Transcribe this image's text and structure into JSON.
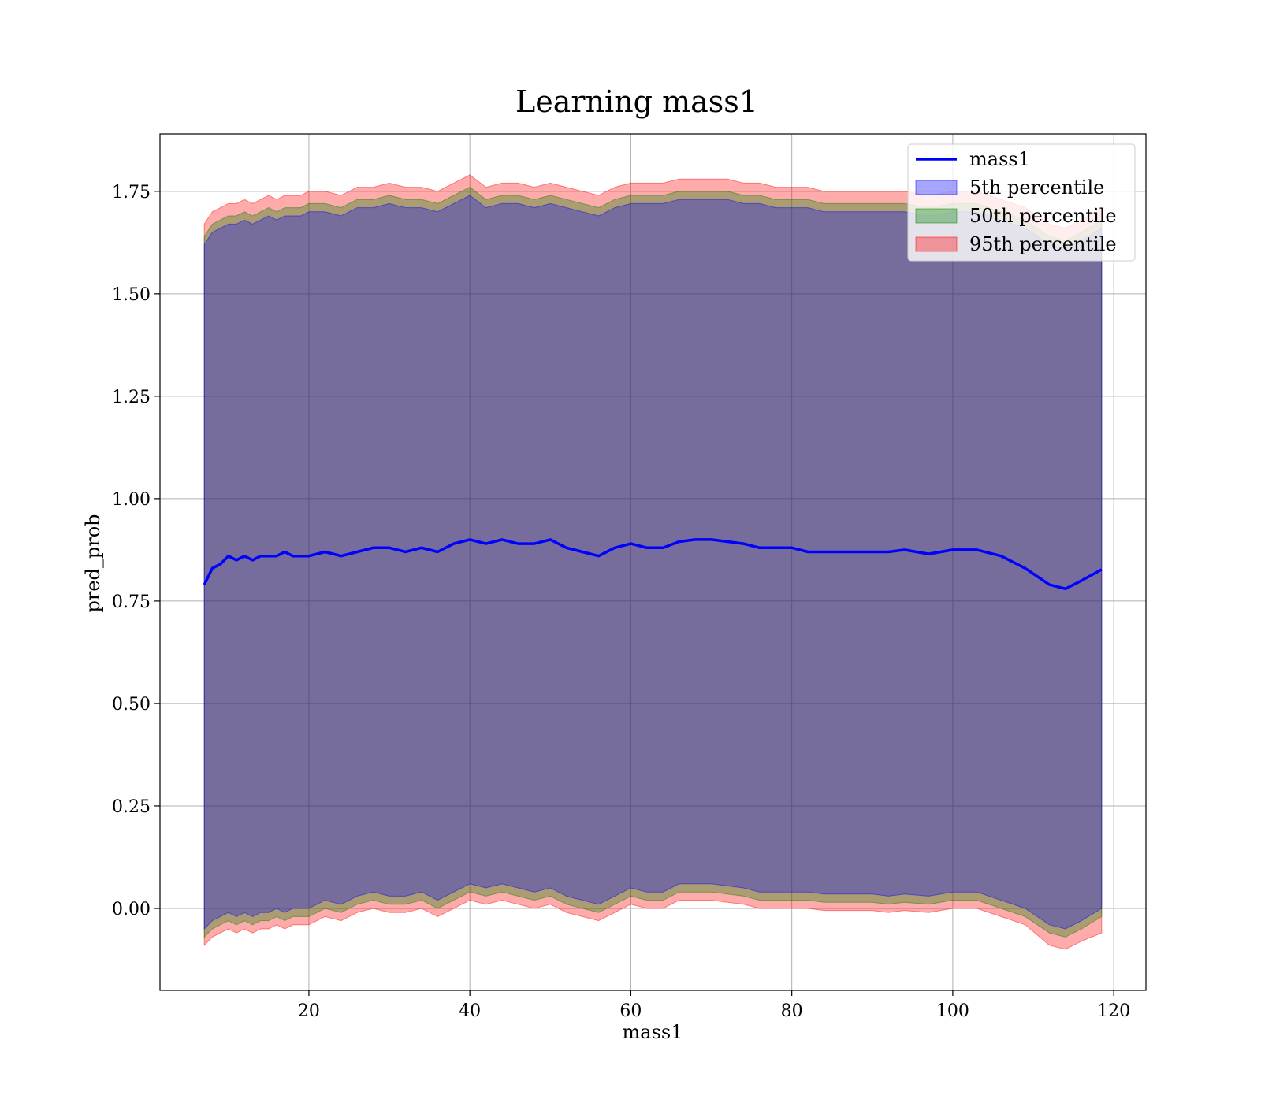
{
  "chart_data": {
    "type": "area",
    "title": "Learning mass1",
    "xlabel": "mass1",
    "ylabel": "pred_prob",
    "xlim": [
      1.5,
      124
    ],
    "ylim": [
      -0.2,
      1.89
    ],
    "xticks": [
      20,
      40,
      60,
      80,
      100,
      120
    ],
    "yticks": [
      0.0,
      0.25,
      0.5,
      0.75,
      1.0,
      1.25,
      1.5,
      1.75
    ],
    "ytick_labels": [
      "0.00",
      "0.25",
      "0.50",
      "0.75",
      "1.00",
      "1.25",
      "1.50",
      "1.75"
    ],
    "grid": true,
    "legend_position": "top-right",
    "colors": {
      "line": "#0000ff",
      "band_5": "#0000ff",
      "band_50": "#008000",
      "band_95": "#ff0000"
    },
    "legend": [
      {
        "label": "mass1",
        "kind": "line",
        "color": "#0000ff"
      },
      {
        "label": "5th percentile",
        "kind": "patch",
        "color": "#0000ff"
      },
      {
        "label": "50th percentile",
        "kind": "patch",
        "color": "#008000"
      },
      {
        "label": "95th percentile",
        "kind": "patch",
        "color": "#ff0000"
      }
    ],
    "x": [
      7,
      8,
      9,
      10,
      11,
      12,
      13,
      14,
      15,
      16,
      17,
      18,
      19,
      20,
      22,
      24,
      26,
      28,
      30,
      32,
      34,
      36,
      38,
      40,
      42,
      44,
      46,
      48,
      50,
      52,
      54,
      56,
      58,
      60,
      62,
      64,
      66,
      68,
      70,
      72,
      74,
      76,
      78,
      80,
      82,
      84,
      86,
      88,
      90,
      92,
      94,
      97,
      100,
      103,
      106,
      109,
      112,
      114,
      116,
      118.5
    ],
    "series": [
      {
        "name": "mass1",
        "values": [
          0.79,
          0.83,
          0.84,
          0.86,
          0.85,
          0.86,
          0.85,
          0.86,
          0.86,
          0.86,
          0.87,
          0.86,
          0.86,
          0.86,
          0.87,
          0.86,
          0.87,
          0.88,
          0.88,
          0.87,
          0.88,
          0.87,
          0.89,
          0.9,
          0.89,
          0.9,
          0.89,
          0.89,
          0.9,
          0.88,
          0.87,
          0.86,
          0.88,
          0.89,
          0.88,
          0.88,
          0.895,
          0.9,
          0.9,
          0.895,
          0.89,
          0.88,
          0.88,
          0.88,
          0.87,
          0.87,
          0.87,
          0.87,
          0.87,
          0.87,
          0.875,
          0.865,
          0.875,
          0.875,
          0.86,
          0.83,
          0.79,
          0.78,
          0.8,
          0.827
        ]
      },
      {
        "name": "5th percentile",
        "lower": [
          -0.05,
          -0.03,
          -0.02,
          -0.01,
          -0.02,
          -0.01,
          -0.02,
          -0.01,
          -0.01,
          0.0,
          -0.01,
          0.0,
          0.0,
          0.0,
          0.02,
          0.01,
          0.03,
          0.04,
          0.03,
          0.03,
          0.04,
          0.02,
          0.04,
          0.06,
          0.05,
          0.06,
          0.05,
          0.04,
          0.05,
          0.03,
          0.02,
          0.01,
          0.03,
          0.05,
          0.04,
          0.04,
          0.06,
          0.06,
          0.06,
          0.055,
          0.05,
          0.04,
          0.04,
          0.04,
          0.04,
          0.035,
          0.035,
          0.035,
          0.035,
          0.03,
          0.035,
          0.03,
          0.04,
          0.04,
          0.02,
          0.0,
          -0.04,
          -0.05,
          -0.03,
          0.0
        ],
        "upper": [
          1.62,
          1.65,
          1.66,
          1.67,
          1.67,
          1.68,
          1.67,
          1.68,
          1.69,
          1.68,
          1.69,
          1.69,
          1.69,
          1.7,
          1.7,
          1.69,
          1.71,
          1.71,
          1.72,
          1.71,
          1.71,
          1.7,
          1.72,
          1.74,
          1.71,
          1.72,
          1.72,
          1.71,
          1.72,
          1.71,
          1.7,
          1.69,
          1.71,
          1.72,
          1.72,
          1.72,
          1.73,
          1.73,
          1.73,
          1.73,
          1.72,
          1.72,
          1.71,
          1.71,
          1.71,
          1.7,
          1.7,
          1.7,
          1.7,
          1.7,
          1.7,
          1.69,
          1.7,
          1.7,
          1.68,
          1.66,
          1.62,
          1.61,
          1.63,
          1.66
        ]
      },
      {
        "name": "50th percentile",
        "lower": [
          -0.07,
          -0.05,
          -0.04,
          -0.03,
          -0.04,
          -0.03,
          -0.04,
          -0.03,
          -0.03,
          -0.02,
          -0.03,
          -0.02,
          -0.02,
          -0.02,
          0.0,
          -0.01,
          0.01,
          0.02,
          0.01,
          0.01,
          0.02,
          0.0,
          0.02,
          0.04,
          0.03,
          0.04,
          0.03,
          0.02,
          0.03,
          0.01,
          0.0,
          -0.01,
          0.01,
          0.03,
          0.02,
          0.02,
          0.04,
          0.04,
          0.04,
          0.035,
          0.03,
          0.02,
          0.02,
          0.02,
          0.02,
          0.015,
          0.015,
          0.015,
          0.015,
          0.01,
          0.015,
          0.01,
          0.02,
          0.02,
          0.0,
          -0.02,
          -0.06,
          -0.07,
          -0.05,
          -0.02
        ],
        "upper": [
          1.64,
          1.67,
          1.68,
          1.69,
          1.69,
          1.7,
          1.69,
          1.7,
          1.71,
          1.7,
          1.71,
          1.71,
          1.71,
          1.72,
          1.72,
          1.71,
          1.73,
          1.73,
          1.74,
          1.73,
          1.73,
          1.72,
          1.74,
          1.76,
          1.73,
          1.74,
          1.74,
          1.73,
          1.74,
          1.73,
          1.72,
          1.71,
          1.73,
          1.74,
          1.74,
          1.74,
          1.75,
          1.75,
          1.75,
          1.75,
          1.74,
          1.74,
          1.73,
          1.73,
          1.73,
          1.72,
          1.72,
          1.72,
          1.72,
          1.72,
          1.72,
          1.71,
          1.72,
          1.72,
          1.7,
          1.68,
          1.64,
          1.63,
          1.65,
          1.68
        ]
      },
      {
        "name": "95th percentile",
        "lower": [
          -0.09,
          -0.07,
          -0.06,
          -0.05,
          -0.06,
          -0.05,
          -0.06,
          -0.05,
          -0.05,
          -0.04,
          -0.05,
          -0.04,
          -0.04,
          -0.04,
          -0.02,
          -0.03,
          -0.01,
          0.0,
          -0.01,
          -0.01,
          0.0,
          -0.02,
          0.0,
          0.02,
          0.01,
          0.02,
          0.01,
          0.0,
          0.01,
          -0.01,
          -0.02,
          -0.03,
          -0.01,
          0.01,
          0.0,
          0.0,
          0.02,
          0.02,
          0.02,
          0.015,
          0.01,
          0.0,
          0.0,
          0.0,
          0.0,
          -0.005,
          -0.005,
          -0.005,
          -0.005,
          -0.01,
          -0.005,
          -0.01,
          0.0,
          0.0,
          -0.02,
          -0.04,
          -0.09,
          -0.1,
          -0.08,
          -0.06
        ],
        "upper": [
          1.67,
          1.7,
          1.71,
          1.72,
          1.72,
          1.73,
          1.72,
          1.73,
          1.74,
          1.73,
          1.74,
          1.74,
          1.74,
          1.75,
          1.75,
          1.74,
          1.76,
          1.76,
          1.77,
          1.76,
          1.76,
          1.75,
          1.77,
          1.79,
          1.76,
          1.77,
          1.77,
          1.76,
          1.77,
          1.76,
          1.75,
          1.74,
          1.76,
          1.77,
          1.77,
          1.77,
          1.78,
          1.78,
          1.78,
          1.78,
          1.77,
          1.77,
          1.76,
          1.76,
          1.76,
          1.75,
          1.75,
          1.75,
          1.75,
          1.75,
          1.75,
          1.74,
          1.75,
          1.75,
          1.73,
          1.71,
          1.67,
          1.66,
          1.68,
          1.71
        ]
      }
    ]
  }
}
